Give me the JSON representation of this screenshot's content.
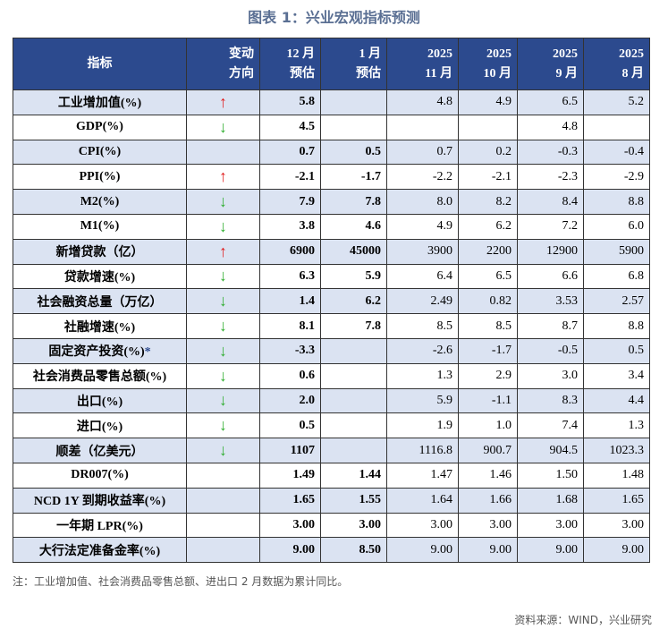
{
  "title": "图表 1：兴业宏观指标预测",
  "table": {
    "header": [
      [
        "指标"
      ],
      [
        "变动",
        "方向"
      ],
      [
        "12 月",
        "预估"
      ],
      [
        "1 月",
        "预估"
      ],
      [
        "2025",
        "11 月"
      ],
      [
        "2025",
        "10 月"
      ],
      [
        "2025",
        "9 月"
      ],
      [
        "2025",
        "8 月"
      ]
    ],
    "rows": [
      [
        "工业增加值(%)",
        "↑",
        "5.8",
        null,
        "4.8",
        "4.9",
        "6.5",
        "5.2"
      ],
      [
        "GDP(%)",
        "↓",
        "4.5",
        null,
        null,
        null,
        "4.8",
        null
      ],
      [
        "CPI(%)",
        null,
        "0.7",
        "0.5",
        "0.7",
        "0.2",
        "-0.3",
        "-0.4"
      ],
      [
        "PPI(%)",
        "↑",
        "-2.1",
        "-1.7",
        "-2.2",
        "-2.1",
        "-2.3",
        "-2.9"
      ],
      [
        "M2(%)",
        "↓",
        "7.9",
        "7.8",
        "8.0",
        "8.2",
        "8.4",
        "8.8"
      ],
      [
        "M1(%)",
        "↓",
        "3.8",
        "4.6",
        "4.9",
        "6.2",
        "7.2",
        "6.0"
      ],
      [
        "新增贷款（亿）",
        "↑",
        "6900",
        "45000",
        "3900",
        "2200",
        "12900",
        "5900"
      ],
      [
        "贷款增速(%)",
        "↓",
        "6.3",
        "5.9",
        "6.4",
        "6.5",
        "6.6",
        "6.8"
      ],
      [
        "社会融资总量（万亿）",
        "↓",
        "1.4",
        "6.2",
        "2.49",
        "0.82",
        "3.53",
        "2.57"
      ],
      [
        "社融增速(%)",
        "↓",
        "8.1",
        "7.8",
        "8.5",
        "8.5",
        "8.7",
        "8.8"
      ],
      [
        {
          "text": "固定资产投资(%)",
          "mark": "*"
        },
        "↓",
        "-3.3",
        null,
        "-2.6",
        "-1.7",
        "-0.5",
        "0.5"
      ],
      [
        "社会消费品零售总额(%)",
        "↓",
        "0.6",
        null,
        "1.3",
        "2.9",
        "3.0",
        "3.4"
      ],
      [
        "出口(%)",
        "↓",
        "2.0",
        null,
        "5.9",
        "-1.1",
        "8.3",
        "4.4"
      ],
      [
        "进口(%)",
        "↓",
        "0.5",
        null,
        "1.9",
        "1.0",
        "7.4",
        "1.3"
      ],
      [
        "顺差（亿美元）",
        "↓",
        "1107",
        null,
        "1116.8",
        "900.7",
        "904.5",
        "1023.3"
      ],
      [
        "DR007(%)",
        null,
        "1.49",
        "1.44",
        "1.47",
        "1.46",
        "1.50",
        "1.48"
      ],
      [
        "NCD 1Y 到期收益率(%)",
        null,
        "1.65",
        "1.55",
        "1.64",
        "1.66",
        "1.68",
        "1.65"
      ],
      [
        "一年期 LPR(%)",
        null,
        "3.00",
        "3.00",
        "3.00",
        "3.00",
        "3.00",
        "3.00"
      ],
      [
        "大行法定准备金率(%)",
        null,
        "9.00",
        "8.50",
        "9.00",
        "9.00",
        "9.00",
        "9.00"
      ]
    ]
  },
  "note": "注：工业增加值、社会消费品零售总额、进出口 2 月数据为累计同比。",
  "source": "资料来源：WIND，兴业研究"
}
